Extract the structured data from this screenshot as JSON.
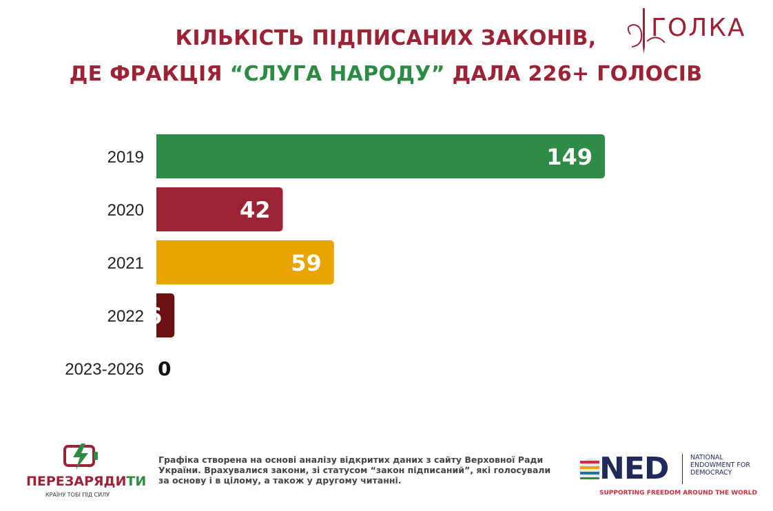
{
  "title": {
    "line1": "КІЛЬКІСТЬ ПІДПИСАНИХ ЗАКОНІВ,",
    "line2_pre": "ДЕ ФРАКЦІЯ ",
    "line2_hl": "“СЛУГА НАРОДУ”",
    "line2_post": " ДАЛА 226+ ГОЛОСІВ"
  },
  "logos": {
    "golka": "ГОЛКА",
    "perezaryadyty_a": "ПЕРЕЗАРЯДИ",
    "perezaryadyty_b": "ТИ",
    "perezaryadyty_tagline": "КРАЇНУ ТОБІ ПІД СИЛУ",
    "ned_word": "NED",
    "ned_full": "NATIONAL ENDOWMENT FOR DEMOCRACY",
    "ned_tagline": "SUPPORTING FREEDOM AROUND THE WORLD"
  },
  "footnote": "Графіка створена на основі аналізу відкритих даних з сайту Верховної Ради України. Врахувалися закони, зі статусом “закон підписаний”, які голосували за основу і в цілому, а також у другому читанні.",
  "colors": {
    "title": "#9b2335",
    "highlight": "#2e8b45"
  },
  "chart_data": {
    "type": "bar",
    "orientation": "horizontal",
    "title": "КІЛЬКІСТЬ ПІДПИСАНИХ ЗАКОНІВ, ДЕ ФРАКЦІЯ “СЛУГА НАРОДУ” ДАЛА 226+ ГОЛОСІВ",
    "categories": [
      "2019",
      "2020",
      "2021",
      "2022",
      "2023-2026"
    ],
    "values": [
      149,
      42,
      59,
      6,
      0
    ],
    "colors": [
      "#2e8b45",
      "#9b2335",
      "#e8a500",
      "#6b1111",
      "#6b1111"
    ],
    "data_labels": true,
    "grid": false,
    "legend": "none"
  }
}
